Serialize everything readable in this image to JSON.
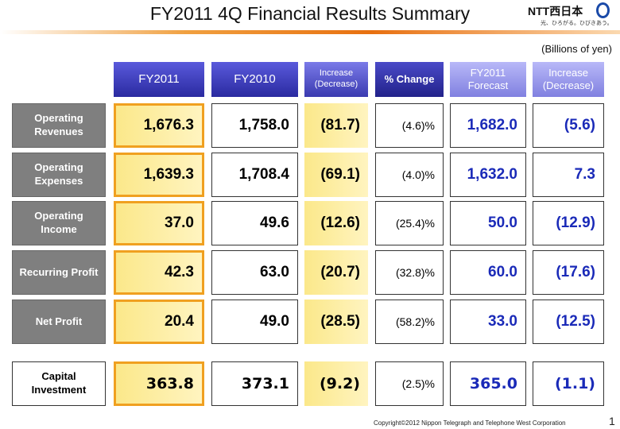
{
  "header": {
    "title": "FY2011 4Q Financial Results Summary",
    "logo": "NTT西日本",
    "tagline": "光、ひろがる。ひびきあう。",
    "unit": "(Billions of yen)"
  },
  "table": {
    "columns": [
      "FY2011",
      "FY2010",
      "Increase (Decrease)",
      "% Change",
      "FY2011 Forecast",
      "Increase (Decrease)"
    ],
    "rows": [
      {
        "label": "Operating Revenues",
        "cells": [
          "1,676.3",
          "1,758.0",
          "(81.7)",
          "(4.6)%",
          "1,682.0",
          "(5.6)"
        ]
      },
      {
        "label": "Operating Expenses",
        "cells": [
          "1,639.3",
          "1,708.4",
          "(69.1)",
          "(4.0)%",
          "1,632.0",
          "7.3"
        ]
      },
      {
        "label": "Operating Income",
        "cells": [
          "37.0",
          "49.6",
          "(12.6)",
          "(25.4)%",
          "50.0",
          "(12.9)"
        ]
      },
      {
        "label": "Recurring Profit",
        "cells": [
          "42.3",
          "63.0",
          "(20.7)",
          "(32.8)%",
          "60.0",
          "(17.6)"
        ]
      },
      {
        "label": "Net Profit",
        "cells": [
          "20.4",
          "49.0",
          "(28.5)",
          "(58.2)%",
          "33.0",
          "(12.5)"
        ]
      },
      {
        "label": "Capital Investment",
        "cells": [
          "363.8",
          "373.1",
          "(9.2)",
          "(2.5)%",
          "365.0",
          "(1.1)"
        ]
      }
    ]
  },
  "footer": {
    "copyright": "Copyright©2012 Nippon Telegraph and Telephone West Corporation",
    "page": "1"
  }
}
